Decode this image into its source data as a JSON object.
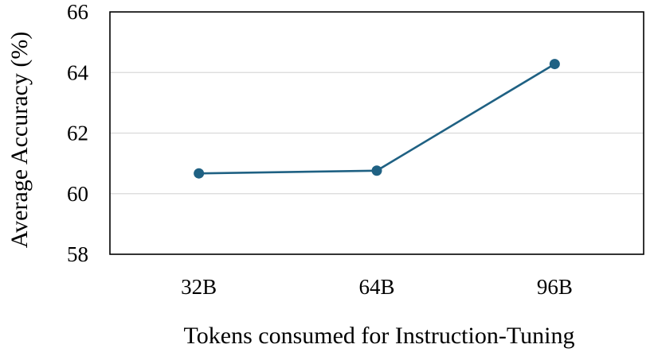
{
  "chart_data": {
    "type": "line",
    "title": "",
    "xlabel": "Tokens consumed for Instruction-Tuning",
    "ylabel": "Average Accuracy (%)",
    "categories": [
      "32B",
      "64B",
      "96B"
    ],
    "series": [
      {
        "values": [
          60.67,
          60.76,
          64.28
        ]
      }
    ],
    "ylim": [
      58,
      66
    ],
    "yticks": [
      "58",
      "60",
      "62",
      "64",
      "66"
    ],
    "grid": "horizontal",
    "colors": {
      "line": "#1f6183",
      "marker": "#1f6183"
    }
  }
}
